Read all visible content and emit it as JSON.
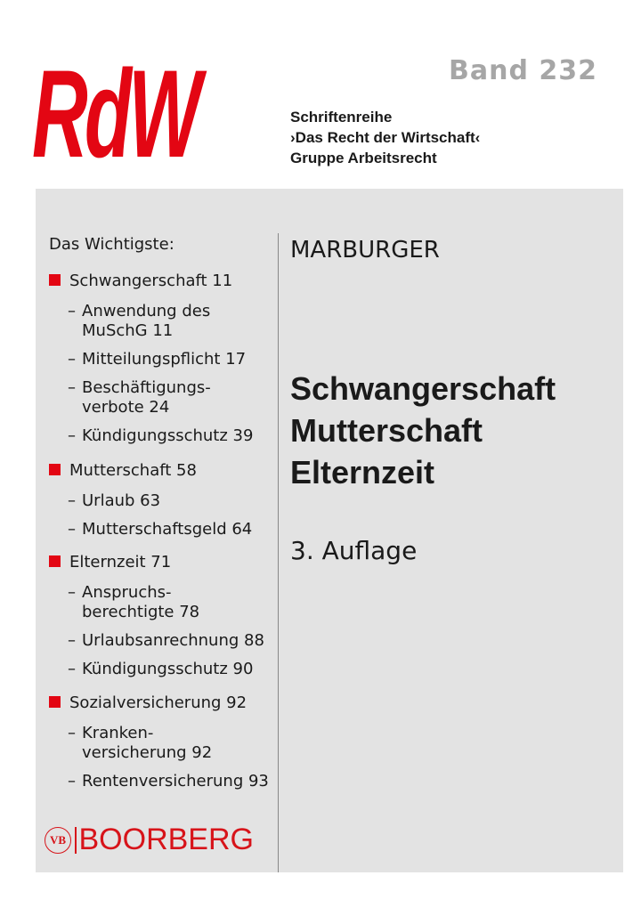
{
  "series": {
    "logo": "RdW",
    "band": "Band 232",
    "lines": [
      "Schriftenreihe",
      "›Das Recht der Wirtschaft‹",
      "Gruppe Arbeitsrecht"
    ]
  },
  "toc": {
    "heading": "Das Wichtigste:",
    "sections": [
      {
        "label": "Schwangerschaft  11",
        "subs": [
          [
            "Anwendung des",
            "MuSchG  11"
          ],
          [
            "Mitteilungspflicht  17"
          ],
          [
            "Beschäftigungs-",
            "verbote  24"
          ],
          [
            "Kündigungsschutz  39"
          ]
        ]
      },
      {
        "label": "Mutterschaft  58",
        "subs": [
          [
            "Urlaub  63"
          ],
          [
            "Mutterschaftsgeld  64"
          ]
        ]
      },
      {
        "label": "Elternzeit  71",
        "subs": [
          [
            "Anspruchs-",
            "berechtigte  78"
          ],
          [
            "Urlaubsanrechnung  88"
          ],
          [
            "Kündigungsschutz  90"
          ]
        ]
      },
      {
        "label": "Sozialversicherung  92",
        "subs": [
          [
            "Kranken-",
            "versicherung  92"
          ],
          [
            "Rentenversicherung  93"
          ]
        ]
      }
    ]
  },
  "book": {
    "author": "MARBURGER",
    "title": [
      "Schwangerschaft",
      "Mutterschaft",
      "Elternzeit"
    ],
    "edition": "3. Auflage"
  },
  "publisher": {
    "seal": "VB",
    "name": "BOORBERG"
  },
  "colors": {
    "brand_red": "#e30613",
    "panel": "#e3e3e3",
    "band_gray": "#a6a6a6"
  }
}
